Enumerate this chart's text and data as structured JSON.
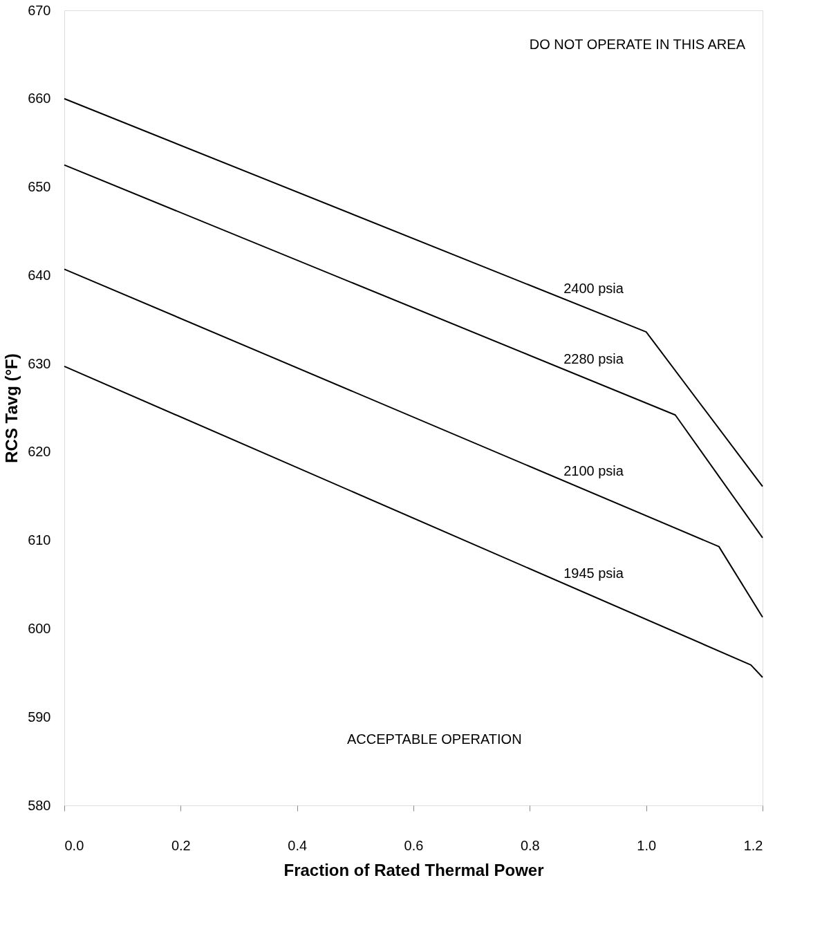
{
  "chart_data": {
    "type": "line",
    "xlabel": "Fraction of Rated Thermal Power",
    "ylabel": "RCS Tavg (°F)",
    "xlim": [
      0,
      1.2
    ],
    "ylim": [
      580,
      670
    ],
    "xticks": [
      {
        "value": 0,
        "label": "0.0"
      },
      0.2,
      0.4,
      0.6,
      0.8,
      {
        "value": 1,
        "label": "1.0"
      },
      1.2
    ],
    "yticks": [
      580,
      590,
      600,
      610,
      620,
      630,
      640,
      650,
      660,
      670
    ],
    "grid": false,
    "legend": false,
    "marker": "none",
    "line_style": "solid",
    "annotations": [
      "DO NOT OPERATE IN THIS AREA",
      "ACCEPTABLE OPERATION"
    ],
    "series": [
      {
        "name": "2400 psia",
        "color": "#000000",
        "x": [
          0,
          1.0,
          1.2
        ],
        "values": [
          660,
          633.6,
          616.1
        ]
      },
      {
        "name": "2280 psia",
        "color": "#000000",
        "x": [
          0,
          1.05,
          1.2
        ],
        "values": [
          652.5,
          624.2,
          610.3
        ]
      },
      {
        "name": "2100 psia",
        "color": "#000000",
        "x": [
          0,
          1.125,
          1.2
        ],
        "values": [
          640.7,
          609.3,
          601.3
        ]
      },
      {
        "name": "1945 psia",
        "color": "#000000",
        "x": [
          0,
          1.18,
          1.2
        ],
        "values": [
          629.7,
          595.9,
          594.5
        ]
      }
    ]
  }
}
